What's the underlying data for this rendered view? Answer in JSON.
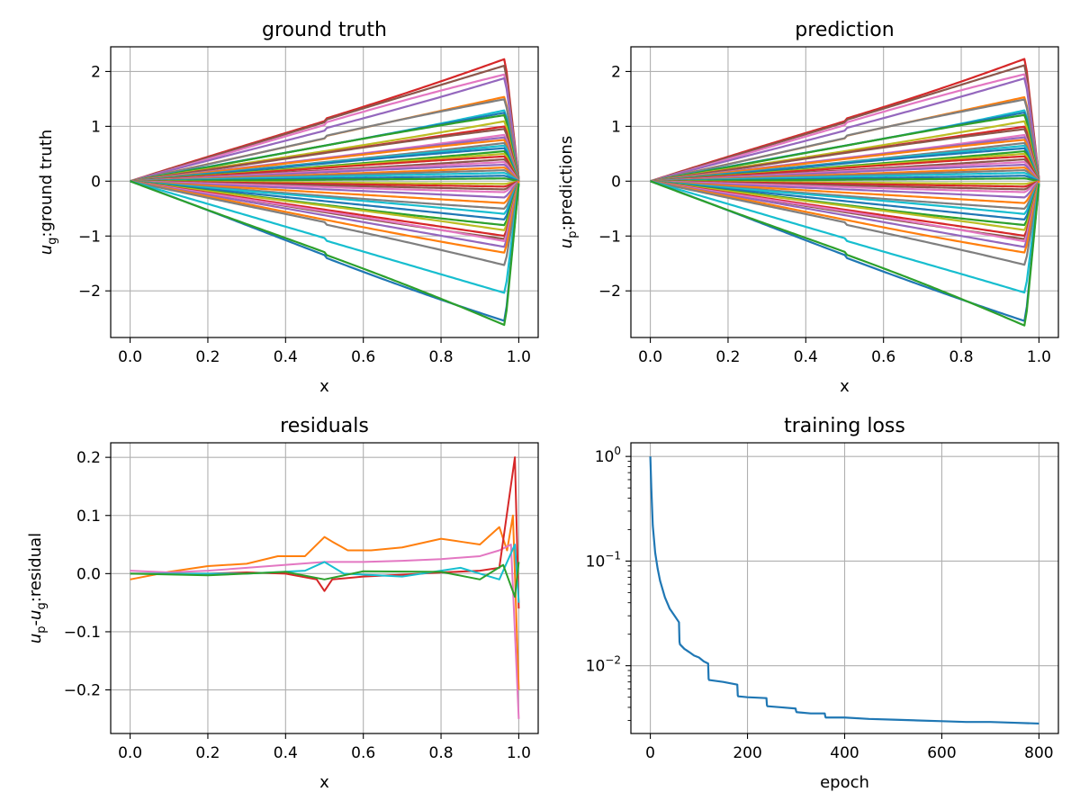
{
  "chart_data": [
    {
      "type": "line",
      "title": "ground truth",
      "xlabel": "x",
      "ylabel": "u_g:ground truth",
      "ylabel_parts": [
        "u",
        "g",
        ":ground truth"
      ],
      "xlim": [
        -0.05,
        1.05
      ],
      "ylim": [
        -2.85,
        2.45
      ],
      "xticks": [
        0.0,
        0.2,
        0.4,
        0.6,
        0.8,
        1.0
      ],
      "xtick_labels": [
        "0.0",
        "0.2",
        "0.4",
        "0.6",
        "0.8",
        "1.0"
      ],
      "yticks": [
        2,
        1,
        0,
        -1,
        -2
      ],
      "ytick_labels": [
        "2",
        "1",
        "0",
        "−1",
        "−2"
      ],
      "grid": true,
      "legend": "none",
      "peak_x": 0.965,
      "amplitudes": [
        2.2,
        2.07,
        1.9,
        1.85,
        1.5,
        1.45,
        1.3,
        1.25,
        1.2,
        1.1,
        1.0,
        0.95,
        0.85,
        0.8,
        0.75,
        0.7,
        0.65,
        0.6,
        0.55,
        0.5,
        0.45,
        0.4,
        0.35,
        0.3,
        0.25,
        0.2,
        0.15,
        0.1,
        0.05,
        -0.05,
        -0.1,
        -0.15,
        -0.2,
        -0.3,
        -0.4,
        -0.5,
        -0.6,
        -0.7,
        -0.8,
        -0.9,
        -1.0,
        -1.05,
        -1.1,
        -1.2,
        -1.3,
        -1.5,
        -2.0,
        -2.5,
        -2.6
      ]
    },
    {
      "type": "line",
      "title": "prediction",
      "xlabel": "x",
      "ylabel": "u_p:predictions",
      "ylabel_parts": [
        "u",
        "p",
        ":predictions"
      ],
      "xlim": [
        -0.05,
        1.05
      ],
      "ylim": [
        -2.85,
        2.45
      ],
      "xticks": [
        0.0,
        0.2,
        0.4,
        0.6,
        0.8,
        1.0
      ],
      "xtick_labels": [
        "0.0",
        "0.2",
        "0.4",
        "0.6",
        "0.8",
        "1.0"
      ],
      "yticks": [
        2,
        1,
        0,
        -1,
        -2
      ],
      "ytick_labels": [
        "2",
        "1",
        "0",
        "−1",
        "−2"
      ],
      "grid": true,
      "legend": "none",
      "peak_x": 0.965,
      "amplitudes": [
        2.2,
        2.07,
        1.9,
        1.85,
        1.5,
        1.45,
        1.3,
        1.25,
        1.2,
        1.1,
        1.0,
        0.95,
        0.85,
        0.8,
        0.75,
        0.7,
        0.65,
        0.6,
        0.55,
        0.5,
        0.45,
        0.4,
        0.35,
        0.3,
        0.25,
        0.2,
        0.15,
        0.1,
        0.05,
        -0.05,
        -0.1,
        -0.15,
        -0.2,
        -0.3,
        -0.4,
        -0.5,
        -0.6,
        -0.7,
        -0.8,
        -0.9,
        -1.0,
        -1.05,
        -1.1,
        -1.2,
        -1.3,
        -1.5,
        -2.0,
        -2.5,
        -2.6
      ]
    },
    {
      "type": "line",
      "title": "residuals",
      "xlabel": "x",
      "ylabel": "u_p-u_g:residual",
      "ylabel_parts": [
        "u",
        "p",
        "-",
        "u",
        "g",
        ":residual"
      ],
      "xlim": [
        -0.05,
        1.05
      ],
      "ylim": [
        -0.275,
        0.225
      ],
      "xticks": [
        0.0,
        0.2,
        0.4,
        0.6,
        0.8,
        1.0
      ],
      "xtick_labels": [
        "0.0",
        "0.2",
        "0.4",
        "0.6",
        "0.8",
        "1.0"
      ],
      "yticks": [
        0.2,
        0.1,
        0.0,
        -0.1,
        -0.2
      ],
      "ytick_labels": [
        "0.2",
        "0.1",
        "0.0",
        "−0.1",
        "−0.2"
      ],
      "grid": true,
      "legend": "none",
      "series": [
        {
          "x": [
            0,
            0.1,
            0.2,
            0.3,
            0.38,
            0.45,
            0.5,
            0.52,
            0.56,
            0.62,
            0.7,
            0.8,
            0.85,
            0.9,
            0.95,
            0.97,
            0.985,
            1.0
          ],
          "y": [
            -0.01,
            0.003,
            0.013,
            0.017,
            0.03,
            0.03,
            0.063,
            0.055,
            0.04,
            0.04,
            0.045,
            0.06,
            0.055,
            0.05,
            0.08,
            0.04,
            0.1,
            -0.2
          ]
        },
        {
          "x": [
            0,
            0.1,
            0.2,
            0.3,
            0.4,
            0.5,
            0.55,
            0.6,
            0.7,
            0.8,
            0.9,
            0.95,
            0.98,
            1.0
          ],
          "y": [
            0.005,
            0.002,
            0.005,
            0.01,
            0.015,
            0.02,
            0.02,
            0.02,
            0.022,
            0.025,
            0.03,
            0.04,
            0.05,
            -0.25
          ]
        },
        {
          "x": [
            0,
            0.1,
            0.2,
            0.3,
            0.4,
            0.48,
            0.5,
            0.52,
            0.6,
            0.7,
            0.8,
            0.9,
            0.95,
            0.99,
            1.0
          ],
          "y": [
            0.0,
            0.0,
            0.0,
            0.002,
            0.0,
            -0.01,
            -0.03,
            -0.01,
            -0.005,
            -0.002,
            0.002,
            0.005,
            0.01,
            0.2,
            -0.06
          ]
        },
        {
          "x": [
            0,
            0.1,
            0.3,
            0.45,
            0.5,
            0.55,
            0.7,
            0.85,
            0.95,
            0.99,
            1.0
          ],
          "y": [
            0.0,
            0.0,
            0.0,
            0.005,
            0.02,
            0.0,
            -0.005,
            0.01,
            -0.01,
            0.05,
            -0.05
          ]
        },
        {
          "x": [
            0,
            0.2,
            0.4,
            0.5,
            0.6,
            0.8,
            0.9,
            0.96,
            0.99,
            1.0
          ],
          "y": [
            0.0,
            -0.003,
            0.003,
            -0.01,
            0.004,
            0.003,
            -0.01,
            0.015,
            -0.04,
            0.02
          ]
        }
      ]
    },
    {
      "type": "line",
      "title": "training loss",
      "xlabel": "epoch",
      "ylabel": "",
      "yscale": "log",
      "xlim": [
        -40,
        840
      ],
      "ylim": [
        0.00225,
        1.35
      ],
      "xticks": [
        0,
        200,
        400,
        600,
        800
      ],
      "xtick_labels": [
        "0",
        "200",
        "400",
        "600",
        "800"
      ],
      "yticks": [
        1,
        0.1,
        0.01
      ],
      "ytick_bases": [
        "10",
        "10",
        "10"
      ],
      "ytick_exponents": [
        "0",
        "−1",
        "−2"
      ],
      "grid": true,
      "legend": "none",
      "series": [
        {
          "x": [
            0,
            2,
            5,
            10,
            15,
            20,
            30,
            40,
            50,
            59,
            60,
            61,
            70,
            80,
            90,
            100,
            110,
            119,
            120,
            121,
            150,
            179,
            180,
            181,
            200,
            239,
            240,
            241,
            270,
            299,
            300,
            301,
            330,
            359,
            360,
            361,
            400,
            450,
            500,
            550,
            600,
            650,
            700,
            750,
            800
          ],
          "y": [
            1.0,
            0.5,
            0.22,
            0.12,
            0.085,
            0.065,
            0.045,
            0.035,
            0.03,
            0.026,
            0.017,
            0.016,
            0.0145,
            0.0135,
            0.0125,
            0.012,
            0.011,
            0.0105,
            0.0075,
            0.0073,
            0.007,
            0.0066,
            0.0052,
            0.0051,
            0.005,
            0.0049,
            0.0042,
            0.0041,
            0.004,
            0.0039,
            0.0037,
            0.0036,
            0.0035,
            0.0035,
            0.0033,
            0.0032,
            0.0032,
            0.0031,
            0.00305,
            0.003,
            0.00295,
            0.0029,
            0.0029,
            0.00285,
            0.0028
          ]
        }
      ]
    }
  ]
}
